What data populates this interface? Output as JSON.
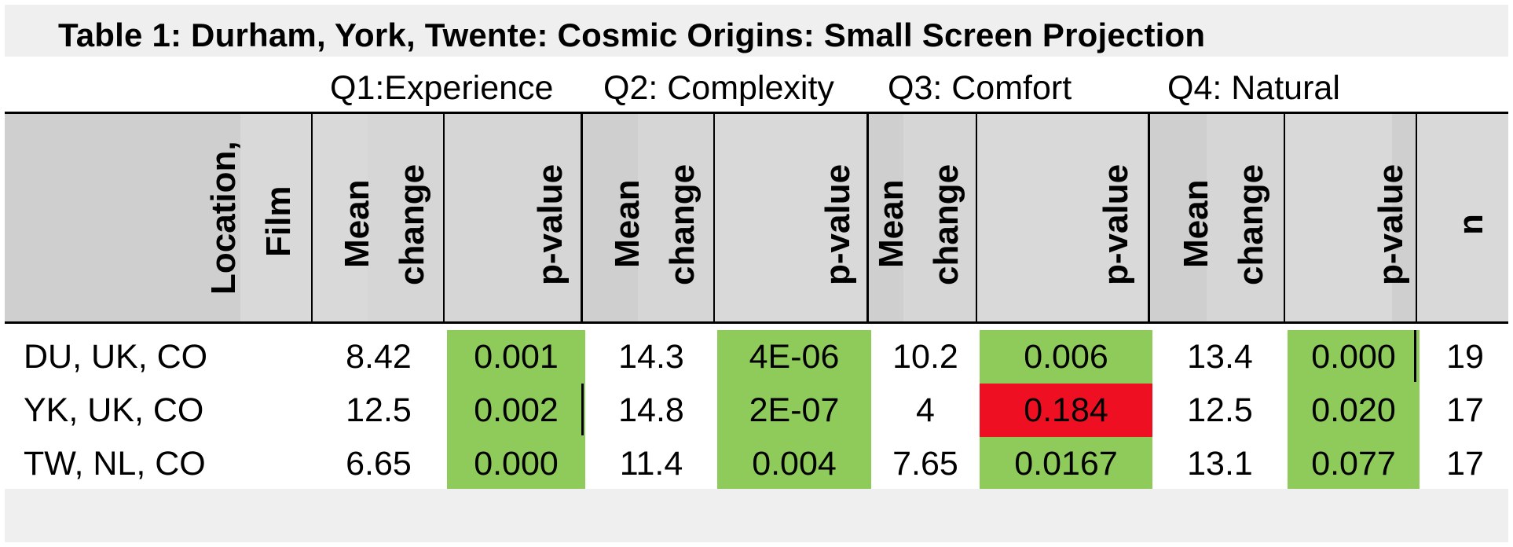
{
  "title": "Table 1: Durham, York, Twente: Cosmic Origins: Small Screen Projection",
  "question_labels": {
    "q1": "Q1:Experience",
    "q2": "Q2: Complexity",
    "q3": "Q3: Comfort",
    "q4": "Q4: Natural"
  },
  "headers": {
    "location_line1": "Location,",
    "location_line2": "Film",
    "mean": "Mean",
    "change": "change",
    "pvalue": "p-value",
    "n": "n"
  },
  "rows": [
    {
      "location": "DU, UK, CO",
      "q1_mean": "8.42",
      "q1_p": "0.001",
      "q2_mean": "14.3",
      "q2_p": "4E-06",
      "q3_mean": "10.2",
      "q3_p": "0.006",
      "q4_mean": "13.4",
      "q4_p": "0.000",
      "n": "19"
    },
    {
      "location": "YK, UK, CO",
      "q1_mean": "12.5",
      "q1_p": "0.002",
      "q2_mean": "14.8",
      "q2_p": "2E-07",
      "q3_mean": "4",
      "q3_p": "0.184",
      "q4_mean": "12.5",
      "q4_p": "0.020",
      "n": "17"
    },
    {
      "location": "TW, NL, CO",
      "q1_mean": "6.65",
      "q1_p": "0.000",
      "q2_mean": "11.4",
      "q2_p": "0.004",
      "q3_mean": "7.65",
      "q3_p": "0.0167",
      "q4_mean": "13.1",
      "q4_p": "0.077",
      "n": "17"
    }
  ],
  "colors": {
    "significant": "#8fcb5b",
    "not_significant": "#ef0f23",
    "header_shade": "#d9d9d9",
    "header_shade_dark": "#bfbfbf"
  }
}
